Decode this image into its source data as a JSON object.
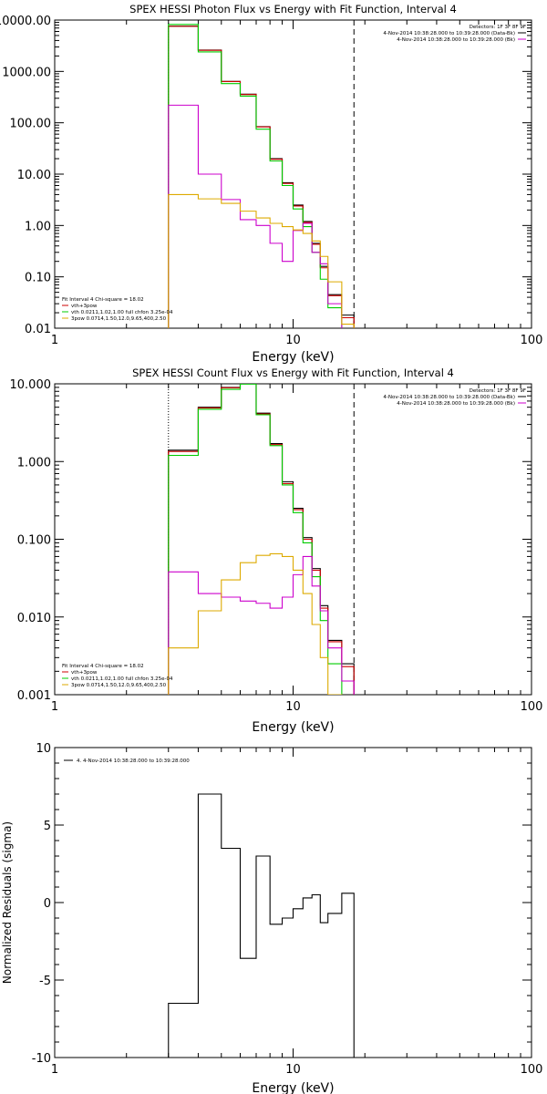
{
  "chart_data": [
    {
      "type": "line",
      "title": "SPEX HESSI Photon Flux vs Energy with Fit Function, Interval 4",
      "xlabel": "Energy (keV)",
      "ylabel": "",
      "xscale": "log",
      "yscale": "log",
      "xlim": [
        1,
        100
      ],
      "ylim": [
        0.01,
        10000
      ],
      "x_ticks": [
        {
          "v": 1,
          "label": "1"
        },
        {
          "v": 10,
          "label": "10"
        },
        {
          "v": 100,
          "label": "100"
        }
      ],
      "y_ticks": [
        {
          "v": 10000,
          "label": "10000.00"
        },
        {
          "v": 1000,
          "label": "1000.00"
        },
        {
          "v": 100,
          "label": "100.00"
        },
        {
          "v": 10,
          "label": "10.00"
        },
        {
          "v": 1,
          "label": "1.00"
        },
        {
          "v": 0.1,
          "label": "0.10"
        },
        {
          "v": 0.01,
          "label": "0.01"
        }
      ],
      "grid": false,
      "vlines": [
        {
          "x": 3.0,
          "style": "dotted",
          "color": "#000000"
        },
        {
          "x": 18.0,
          "style": "dashed",
          "color": "#000000"
        }
      ],
      "bin_edges": [
        3.0,
        4.0,
        5.0,
        6.0,
        7.0,
        8.0,
        9.0,
        10.0,
        11.0,
        12.0,
        13.0,
        14.0,
        16.0,
        18.0
      ],
      "series": [
        {
          "color": "#000000",
          "values": [
            7600,
            2600,
            640,
            360,
            84,
            20,
            6.8,
            2.5,
            1.2,
            0.45,
            0.16,
            0.045,
            0.018
          ]
        },
        {
          "color": "#cc0000",
          "values": [
            7550,
            2580,
            635,
            355,
            83,
            19.5,
            6.6,
            2.4,
            1.15,
            0.43,
            0.15,
            0.043,
            0.016
          ]
        },
        {
          "color": "#00cc00",
          "values": [
            8200,
            2400,
            580,
            330,
            75,
            18,
            6.0,
            2.1,
            0.95,
            0.3,
            0.09,
            0.025,
            0.007
          ]
        },
        {
          "color": "#cc00cc",
          "values": [
            220,
            10,
            3.2,
            1.3,
            1.0,
            0.45,
            0.2,
            0.8,
            1.1,
            0.3,
            0.18,
            0.03,
            0.009
          ]
        },
        {
          "color": "#ddaa00",
          "values": [
            4.0,
            3.3,
            2.7,
            1.9,
            1.4,
            1.1,
            0.95,
            0.82,
            0.7,
            0.5,
            0.25,
            0.08,
            0.012
          ]
        }
      ],
      "series_meta": {
        "black_extends_to_x": 18.0
      },
      "legend_left": {
        "header": "Fit Interval 4   Chi-square = 18.02",
        "entries": [
          {
            "label": "vth+3pow",
            "color": "#cc0000"
          },
          {
            "label": "vth 0.0211,1.02,1.00  full chfon 3.25e-04",
            "color": "#00cc00"
          },
          {
            "label": "3pow 0.0714,1.50,12.0,9.65,400,2.50",
            "color": "#ddaa00"
          }
        ]
      },
      "legend_right": {
        "header": "Detectors: 1F 3F 8F 9F",
        "entries": [
          {
            "label": "4-Nov-2014 10:38:28.000 to 10:39:28.000 (Data-Bk)",
            "color": "#000000"
          },
          {
            "label": "4-Nov-2014 10:38:28.000 to 10:39:28.000 (Bk)",
            "color": "#cc00cc"
          }
        ]
      }
    },
    {
      "type": "line",
      "title": "SPEX HESSI Count Flux vs Energy with Fit Function, Interval 4",
      "xlabel": "Energy (keV)",
      "ylabel": "",
      "xscale": "log",
      "yscale": "log",
      "xlim": [
        1,
        100
      ],
      "ylim": [
        0.001,
        10
      ],
      "x_ticks": [
        {
          "v": 1,
          "label": "1"
        },
        {
          "v": 10,
          "label": "10"
        },
        {
          "v": 100,
          "label": "100"
        }
      ],
      "y_ticks": [
        {
          "v": 10,
          "label": "10.000"
        },
        {
          "v": 1,
          "label": "1.000"
        },
        {
          "v": 0.1,
          "label": "0.100"
        },
        {
          "v": 0.01,
          "label": "0.010"
        },
        {
          "v": 0.001,
          "label": "0.001"
        }
      ],
      "grid": false,
      "vlines": [
        {
          "x": 3.0,
          "style": "dotted",
          "color": "#000000"
        },
        {
          "x": 18.0,
          "style": "dashed",
          "color": "#000000"
        }
      ],
      "bin_edges": [
        3.0,
        4.0,
        5.0,
        6.0,
        7.0,
        8.0,
        9.0,
        10.0,
        11.0,
        12.0,
        13.0,
        14.0,
        16.0,
        18.0
      ],
      "series": [
        {
          "color": "#000000",
          "values": [
            1.4,
            5.0,
            9.0,
            10.2,
            4.2,
            1.7,
            0.55,
            0.25,
            0.105,
            0.042,
            0.014,
            0.005,
            0.0025
          ]
        },
        {
          "color": "#cc0000",
          "values": [
            1.35,
            4.9,
            8.9,
            10.0,
            4.1,
            1.65,
            0.52,
            0.24,
            0.1,
            0.04,
            0.013,
            0.0048,
            0.0023
          ]
        },
        {
          "color": "#00cc00",
          "values": [
            1.2,
            4.7,
            8.5,
            9.9,
            4.0,
            1.6,
            0.5,
            0.22,
            0.09,
            0.033,
            0.009,
            0.0025,
            0.0009
          ]
        },
        {
          "color": "#cc00cc",
          "values": [
            0.038,
            0.02,
            0.018,
            0.016,
            0.015,
            0.013,
            0.018,
            0.035,
            0.06,
            0.025,
            0.012,
            0.004,
            0.0015
          ]
        },
        {
          "color": "#ddaa00",
          "values": [
            0.004,
            0.012,
            0.03,
            0.05,
            0.062,
            0.065,
            0.06,
            0.04,
            0.02,
            0.008,
            0.003,
            0.001,
            0.0004
          ]
        }
      ],
      "legend_left": {
        "header": "Fit Interval 4   Chi-square = 18.02",
        "entries": [
          {
            "label": "vth+3pow",
            "color": "#cc0000"
          },
          {
            "label": "vth 0.0211,1.02,1.00  full chfon 3.25e-04",
            "color": "#00cc00"
          },
          {
            "label": "3pow 0.0714,1.50,12.0,9.65,400,2.50",
            "color": "#ddaa00"
          }
        ]
      },
      "legend_right": {
        "header": "Detectors: 1F 3F 8F 9F",
        "entries": [
          {
            "label": "4-Nov-2014 10:38:28.000 to 10:39:28.000 (Data-Bk)",
            "color": "#000000"
          },
          {
            "label": "4-Nov-2014 10:38:28.000 to 10:39:28.000 (Bk)",
            "color": "#cc00cc"
          }
        ]
      }
    },
    {
      "type": "line",
      "title": "",
      "xlabel": "Energy (keV)",
      "ylabel": "Normalized Residuals (sigma)",
      "xscale": "log",
      "yscale": "linear",
      "xlim": [
        1,
        100
      ],
      "ylim": [
        -10,
        10
      ],
      "x_ticks": [
        {
          "v": 1,
          "label": "1"
        },
        {
          "v": 10,
          "label": "10"
        },
        {
          "v": 100,
          "label": "100"
        }
      ],
      "y_ticks": [
        {
          "v": 10,
          "label": "10"
        },
        {
          "v": 5,
          "label": "5"
        },
        {
          "v": 0,
          "label": "0"
        },
        {
          "v": -5,
          "label": "-5"
        },
        {
          "v": -10,
          "label": "-10"
        }
      ],
      "grid": false,
      "bin_edges": [
        3.0,
        4.0,
        5.0,
        6.0,
        7.0,
        8.0,
        9.0,
        10.0,
        11.0,
        12.0,
        13.0,
        14.0,
        16.0,
        18.0
      ],
      "series": [
        {
          "color": "#000000",
          "values": [
            -6.5,
            7.0,
            3.5,
            -3.6,
            3.0,
            -1.4,
            -1.0,
            -0.4,
            0.3,
            0.5,
            -1.3,
            -0.7,
            0.6
          ]
        }
      ],
      "legend_right": null,
      "legend_left": {
        "header": "",
        "entries": [
          {
            "label": "4.  4-Nov-2014 10:38:28.000 to 10:39:28.000",
            "color": "#000000"
          }
        ]
      }
    }
  ]
}
